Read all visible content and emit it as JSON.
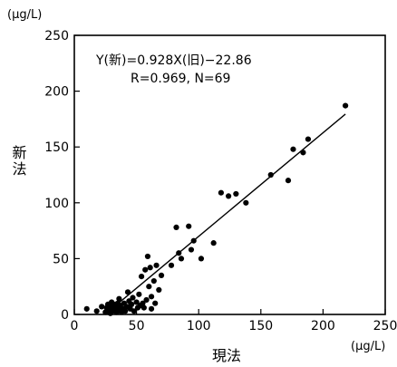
{
  "chart_data": {
    "type": "scatter",
    "xlabel": "現法",
    "ylabel": "新法",
    "x_unit": "(μg/L)",
    "y_unit": "(μg/L)",
    "xlim": [
      0,
      250
    ],
    "ylim": [
      0,
      250
    ],
    "xticks": [
      0,
      50,
      100,
      150,
      200,
      250
    ],
    "yticks": [
      0,
      50,
      100,
      150,
      200,
      250
    ],
    "grid": false,
    "annotations": [
      "Y(新)=0.928X(旧)−22.86",
      "R=0.969, N=69"
    ],
    "regression": {
      "slope": 0.928,
      "intercept": -22.86,
      "x_range": [
        25,
        218
      ]
    },
    "points": [
      {
        "x": 10,
        "y": 5
      },
      {
        "x": 18,
        "y": 3
      },
      {
        "x": 22,
        "y": 7
      },
      {
        "x": 25,
        "y": 2
      },
      {
        "x": 26,
        "y": 6
      },
      {
        "x": 27,
        "y": 9
      },
      {
        "x": 28,
        "y": 4
      },
      {
        "x": 29,
        "y": 1
      },
      {
        "x": 30,
        "y": 7
      },
      {
        "x": 30,
        "y": 11
      },
      {
        "x": 31,
        "y": 3
      },
      {
        "x": 32,
        "y": 5
      },
      {
        "x": 33,
        "y": 9
      },
      {
        "x": 34,
        "y": 2
      },
      {
        "x": 35,
        "y": 6
      },
      {
        "x": 35,
        "y": 10
      },
      {
        "x": 36,
        "y": 4
      },
      {
        "x": 37,
        "y": 8
      },
      {
        "x": 38,
        "y": 2
      },
      {
        "x": 39,
        "y": 5
      },
      {
        "x": 40,
        "y": 10
      },
      {
        "x": 41,
        "y": 3
      },
      {
        "x": 42,
        "y": 7
      },
      {
        "x": 43,
        "y": 20
      },
      {
        "x": 44,
        "y": 12
      },
      {
        "x": 45,
        "y": 5
      },
      {
        "x": 46,
        "y": 9
      },
      {
        "x": 47,
        "y": 15
      },
      {
        "x": 48,
        "y": 3
      },
      {
        "x": 50,
        "y": 11
      },
      {
        "x": 51,
        "y": 6
      },
      {
        "x": 52,
        "y": 18
      },
      {
        "x": 53,
        "y": 8
      },
      {
        "x": 54,
        "y": 34
      },
      {
        "x": 55,
        "y": 10
      },
      {
        "x": 56,
        "y": 6
      },
      {
        "x": 57,
        "y": 40
      },
      {
        "x": 58,
        "y": 13
      },
      {
        "x": 59,
        "y": 52
      },
      {
        "x": 60,
        "y": 25
      },
      {
        "x": 61,
        "y": 42
      },
      {
        "x": 62,
        "y": 16
      },
      {
        "x": 64,
        "y": 30
      },
      {
        "x": 65,
        "y": 10
      },
      {
        "x": 66,
        "y": 44
      },
      {
        "x": 68,
        "y": 22
      },
      {
        "x": 70,
        "y": 35
      },
      {
        "x": 78,
        "y": 44
      },
      {
        "x": 82,
        "y": 78
      },
      {
        "x": 84,
        "y": 55
      },
      {
        "x": 86,
        "y": 50
      },
      {
        "x": 92,
        "y": 79
      },
      {
        "x": 94,
        "y": 58
      },
      {
        "x": 96,
        "y": 66
      },
      {
        "x": 102,
        "y": 50
      },
      {
        "x": 112,
        "y": 64
      },
      {
        "x": 118,
        "y": 109
      },
      {
        "x": 124,
        "y": 106
      },
      {
        "x": 130,
        "y": 108
      },
      {
        "x": 138,
        "y": 100
      },
      {
        "x": 158,
        "y": 125
      },
      {
        "x": 172,
        "y": 120
      },
      {
        "x": 176,
        "y": 148
      },
      {
        "x": 184,
        "y": 145
      },
      {
        "x": 188,
        "y": 157
      },
      {
        "x": 218,
        "y": 187
      },
      {
        "x": 62,
        "y": 5
      },
      {
        "x": 44,
        "y": 7
      },
      {
        "x": 36,
        "y": 14
      }
    ]
  }
}
